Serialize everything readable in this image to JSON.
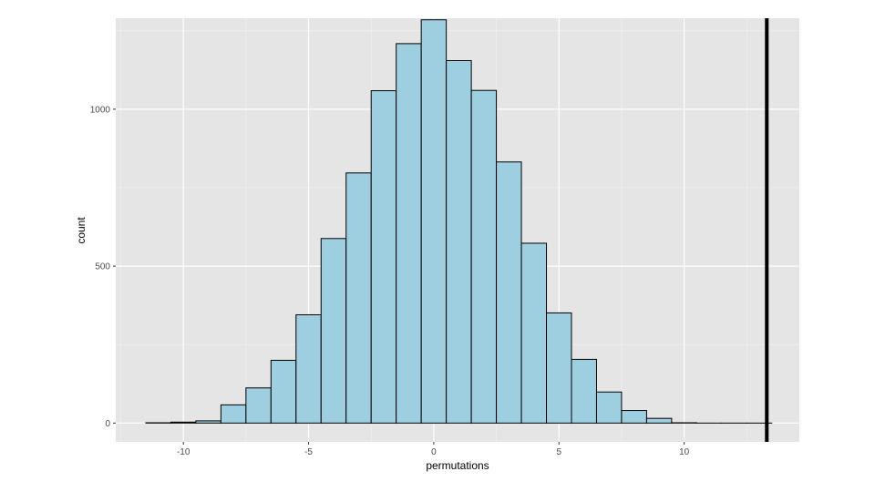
{
  "chart_data": {
    "type": "bar",
    "subtype": "histogram",
    "xlabel": "permutations",
    "ylabel": "count",
    "xlim": [
      -12.7,
      14.6
    ],
    "ylim": [
      -60,
      1290
    ],
    "x_ticks": [
      -10,
      -5,
      0,
      5,
      10
    ],
    "x_tick_labels": [
      "-10",
      "-5",
      "0",
      "5",
      "10"
    ],
    "y_ticks": [
      0,
      500,
      1000
    ],
    "y_tick_labels": [
      "0",
      "500",
      "1000"
    ],
    "bin_width": 1,
    "bins": [
      {
        "x0": -11.5,
        "x1": -10.5,
        "count": 1
      },
      {
        "x0": -10.5,
        "x1": -9.5,
        "count": 3
      },
      {
        "x0": -9.5,
        "x1": -8.5,
        "count": 7
      },
      {
        "x0": -8.5,
        "x1": -7.5,
        "count": 58
      },
      {
        "x0": -7.5,
        "x1": -6.5,
        "count": 112
      },
      {
        "x0": -6.5,
        "x1": -5.5,
        "count": 200
      },
      {
        "x0": -5.5,
        "x1": -4.5,
        "count": 345
      },
      {
        "x0": -4.5,
        "x1": -3.5,
        "count": 588
      },
      {
        "x0": -3.5,
        "x1": -2.5,
        "count": 797
      },
      {
        "x0": -2.5,
        "x1": -1.5,
        "count": 1059
      },
      {
        "x0": -1.5,
        "x1": -0.5,
        "count": 1209
      },
      {
        "x0": -0.5,
        "x1": 0.5,
        "count": 1285
      },
      {
        "x0": 0.5,
        "x1": 1.5,
        "count": 1155
      },
      {
        "x0": 1.5,
        "x1": 2.5,
        "count": 1060
      },
      {
        "x0": 2.5,
        "x1": 3.5,
        "count": 832
      },
      {
        "x0": 3.5,
        "x1": 4.5,
        "count": 573
      },
      {
        "x0": 4.5,
        "x1": 5.5,
        "count": 351
      },
      {
        "x0": 5.5,
        "x1": 6.5,
        "count": 203
      },
      {
        "x0": 6.5,
        "x1": 7.5,
        "count": 99
      },
      {
        "x0": 7.5,
        "x1": 8.5,
        "count": 40
      },
      {
        "x0": 8.5,
        "x1": 9.5,
        "count": 15
      },
      {
        "x0": 9.5,
        "x1": 10.5,
        "count": 1
      },
      {
        "x0": 10.5,
        "x1": 11.5,
        "count": 0
      },
      {
        "x0": 11.5,
        "x1": 12.5,
        "count": 0
      },
      {
        "x0": 12.5,
        "x1": 13.5,
        "count": 0
      }
    ],
    "reference_line": {
      "x": 13.3
    },
    "colors": {
      "bar_fill": "#9ecfe0",
      "bar_stroke": "#000000",
      "panel": "#e5e5e5",
      "grid_major": "#ffffff",
      "grid_minor": "#f2f2f2",
      "reference_line": "#000000"
    },
    "grid": true,
    "legend": "none"
  }
}
